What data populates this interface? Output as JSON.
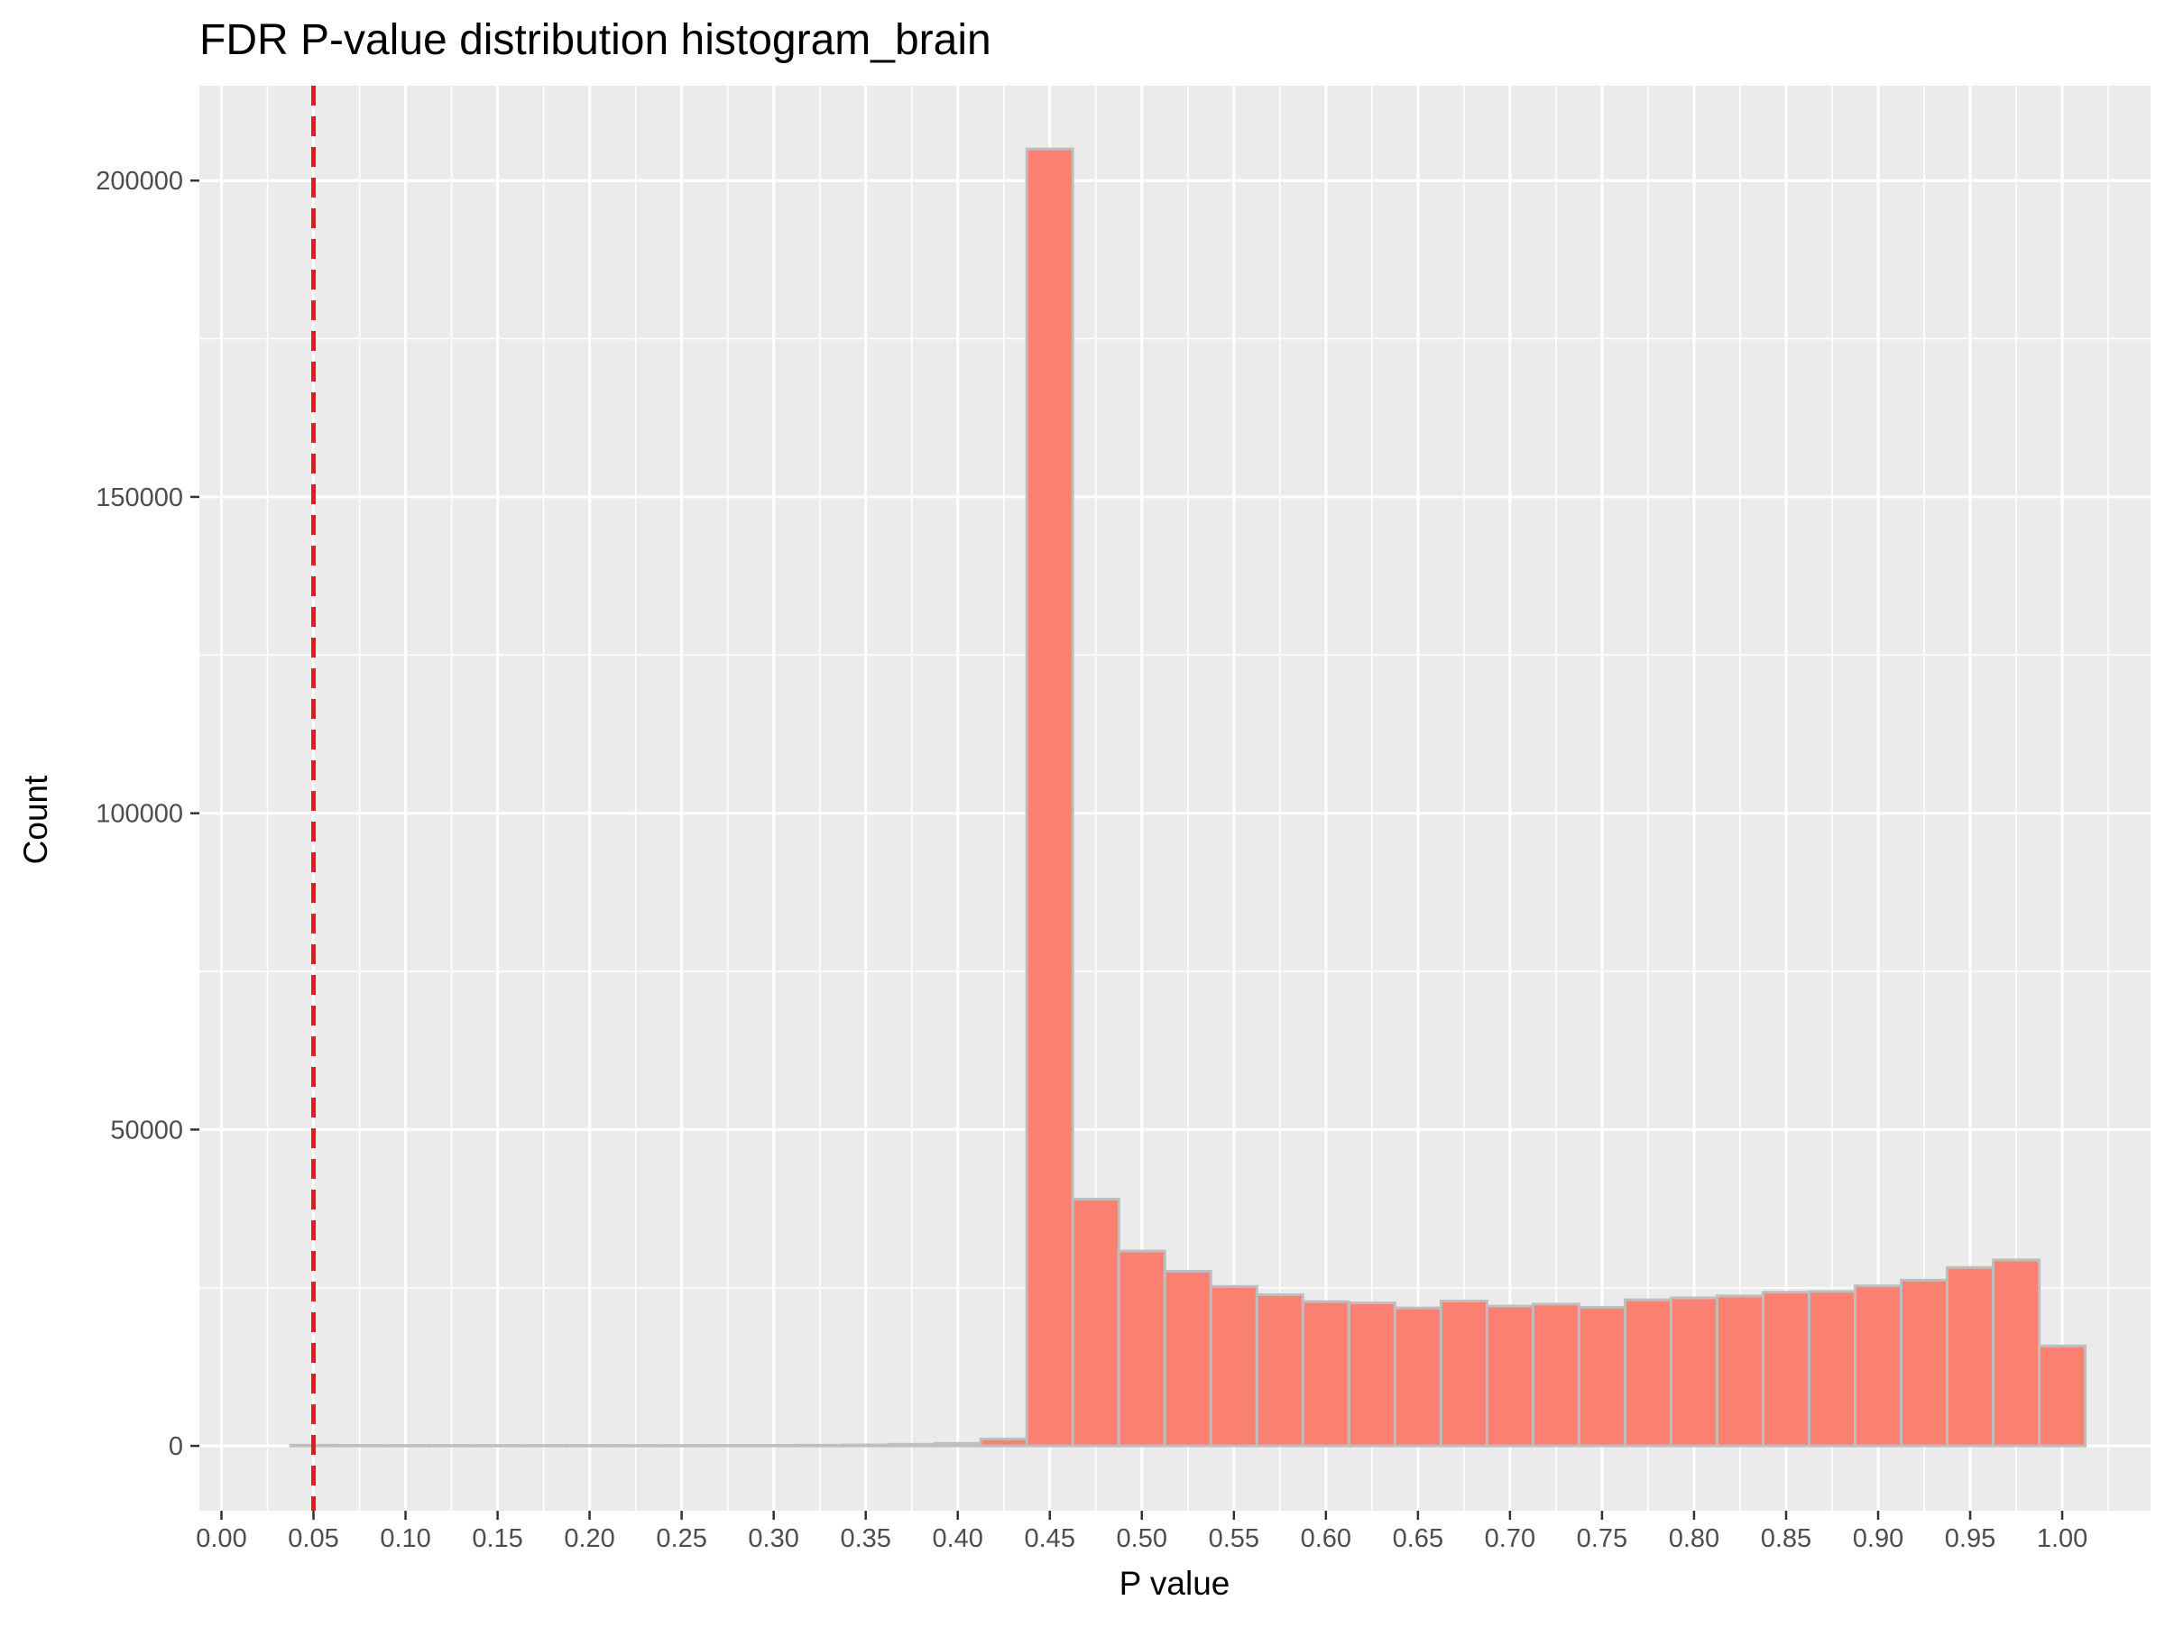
{
  "chart_data": {
    "type": "bar",
    "title": "FDR P-value distribution histogram_brain",
    "xlabel": "P value",
    "ylabel": "Count",
    "xlim": [
      -0.012,
      1.048
    ],
    "ylim": [
      -10250,
      215000
    ],
    "x_ticks": [
      "0.00",
      "0.05",
      "0.10",
      "0.15",
      "0.20",
      "0.25",
      "0.30",
      "0.35",
      "0.40",
      "0.45",
      "0.50",
      "0.55",
      "0.60",
      "0.65",
      "0.70",
      "0.75",
      "0.80",
      "0.85",
      "0.90",
      "0.95",
      "1.00"
    ],
    "y_ticks": [
      "0",
      "50000",
      "100000",
      "150000",
      "200000"
    ],
    "bin_width": 0.025,
    "bins": [
      {
        "start": 0.0375,
        "count": 100
      },
      {
        "start": 0.0625,
        "count": 80
      },
      {
        "start": 0.0875,
        "count": 60
      },
      {
        "start": 0.1125,
        "count": 60
      },
      {
        "start": 0.1375,
        "count": 60
      },
      {
        "start": 0.1625,
        "count": 60
      },
      {
        "start": 0.1875,
        "count": 60
      },
      {
        "start": 0.2125,
        "count": 60
      },
      {
        "start": 0.2375,
        "count": 60
      },
      {
        "start": 0.2625,
        "count": 70
      },
      {
        "start": 0.2875,
        "count": 80
      },
      {
        "start": 0.3125,
        "count": 100
      },
      {
        "start": 0.3375,
        "count": 150
      },
      {
        "start": 0.3625,
        "count": 250
      },
      {
        "start": 0.3875,
        "count": 400
      },
      {
        "start": 0.4125,
        "count": 1100
      },
      {
        "start": 0.4375,
        "count": 205000
      },
      {
        "start": 0.4625,
        "count": 39000
      },
      {
        "start": 0.4875,
        "count": 30800
      },
      {
        "start": 0.5125,
        "count": 27600
      },
      {
        "start": 0.5375,
        "count": 25200
      },
      {
        "start": 0.5625,
        "count": 23900
      },
      {
        "start": 0.5875,
        "count": 22800
      },
      {
        "start": 0.6125,
        "count": 22600
      },
      {
        "start": 0.6375,
        "count": 21800
      },
      {
        "start": 0.6625,
        "count": 22900
      },
      {
        "start": 0.6875,
        "count": 22100
      },
      {
        "start": 0.7125,
        "count": 22400
      },
      {
        "start": 0.7375,
        "count": 21900
      },
      {
        "start": 0.7625,
        "count": 23100
      },
      {
        "start": 0.7875,
        "count": 23400
      },
      {
        "start": 0.8125,
        "count": 23700
      },
      {
        "start": 0.8375,
        "count": 24300
      },
      {
        "start": 0.8625,
        "count": 24400
      },
      {
        "start": 0.8875,
        "count": 25300
      },
      {
        "start": 0.9125,
        "count": 26200
      },
      {
        "start": 0.9375,
        "count": 28200
      },
      {
        "start": 0.9625,
        "count": 29400
      },
      {
        "start": 0.9875,
        "count": 15800
      }
    ],
    "reference_line": {
      "x": 0.05,
      "style": "dashed",
      "color": "#e41a1c"
    },
    "colors": {
      "bar_fill": "#fa8072",
      "bar_outline": "#bebebe",
      "panel_background": "#ebebeb",
      "grid": "#ffffff",
      "reference_line": "#e41a1c"
    },
    "grid": true,
    "legend": "none"
  }
}
